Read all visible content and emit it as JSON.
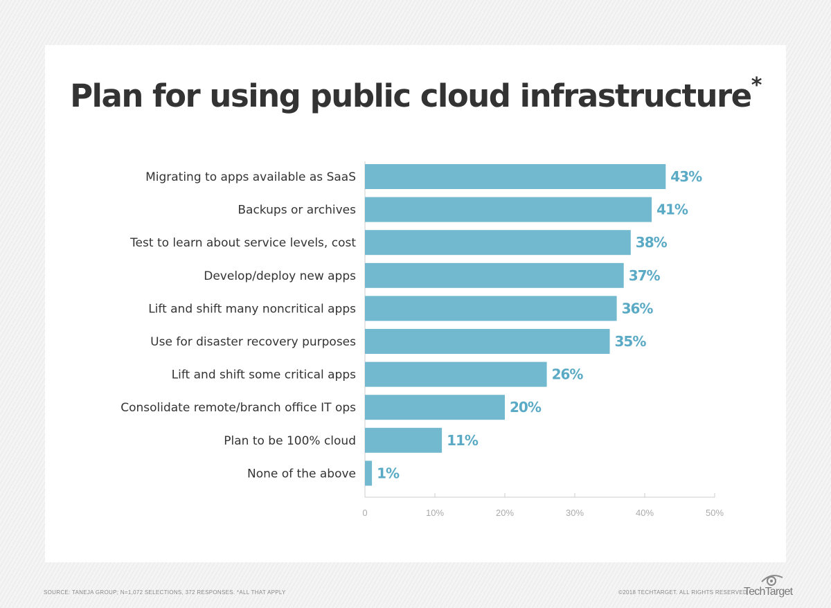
{
  "title": "Plan for using public cloud infrastructure",
  "title_mark": "*",
  "footer": {
    "source": "SOURCE: TANEJA GROUP; N=1,072 SELECTIONS, 372 RESPONSES. *ALL THAT APPLY",
    "copyright": "©2018 TECHTARGET. ALL RIGHTS RESERVED",
    "logo": "TechTarget"
  },
  "colors": {
    "bar": "#72b9cf",
    "value_label": "#5aaac5",
    "text": "#333333",
    "axis": "#cccccc"
  },
  "chart_data": {
    "type": "bar",
    "orientation": "horizontal",
    "title": "Plan for using public cloud infrastructure*",
    "categories": [
      "Migrating to apps available as SaaS",
      "Backups or archives",
      "Test to learn about service levels, cost",
      "Develop/deploy new apps",
      "Lift and shift many noncritical apps",
      "Use for disaster recovery purposes",
      "Lift and shift some critical apps",
      "Consolidate remote/branch office IT ops",
      "Plan to be 100% cloud",
      "None of the above"
    ],
    "values": [
      43,
      41,
      38,
      37,
      36,
      35,
      26,
      20,
      11,
      1
    ],
    "data_labels": [
      "43%",
      "41%",
      "38%",
      "37%",
      "36%",
      "35%",
      "26%",
      "20%",
      "11%",
      "1%"
    ],
    "xlim": [
      0,
      50
    ],
    "xticks": [
      0,
      10,
      20,
      30,
      40,
      50
    ],
    "xtick_labels": [
      "0",
      "10%",
      "20%",
      "30%",
      "40%",
      "50%"
    ],
    "xlabel": "",
    "ylabel": "",
    "grid": false,
    "legend": "none"
  }
}
